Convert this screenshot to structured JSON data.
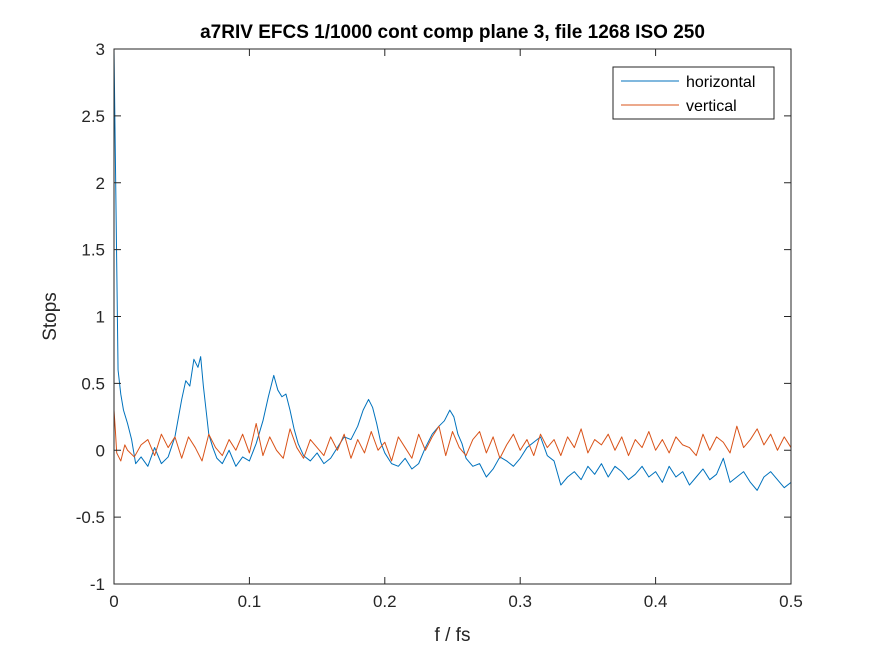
{
  "chart_data": {
    "type": "line",
    "title": "a7RIV EFCS 1/1000 cont comp plane 3, file 1268 ISO 250",
    "xlabel": "f / fs",
    "ylabel": "Stops",
    "xlim": [
      0,
      0.5
    ],
    "ylim": [
      -1,
      3
    ],
    "xticks": [
      0,
      0.1,
      0.2,
      0.3,
      0.4,
      0.5
    ],
    "xtick_labels": [
      "0",
      "0.1",
      "0.2",
      "0.3",
      "0.4",
      "0.5"
    ],
    "yticks": [
      -1,
      -0.5,
      0,
      0.5,
      1,
      1.5,
      2,
      2.5,
      3
    ],
    "ytick_labels": [
      "-1",
      "-0.5",
      "0",
      "0.5",
      "1",
      "1.5",
      "2",
      "2.5",
      "3"
    ],
    "grid": false,
    "legend_position": "top-right",
    "series": [
      {
        "name": "horizontal",
        "color": "#0072BD",
        "x": [
          0,
          0.001,
          0.002,
          0.003,
          0.005,
          0.007,
          0.01,
          0.013,
          0.016,
          0.02,
          0.025,
          0.03,
          0.035,
          0.04,
          0.045,
          0.05,
          0.053,
          0.056,
          0.059,
          0.062,
          0.064,
          0.066,
          0.068,
          0.07,
          0.073,
          0.076,
          0.08,
          0.085,
          0.09,
          0.095,
          0.1,
          0.105,
          0.11,
          0.114,
          0.118,
          0.121,
          0.124,
          0.127,
          0.13,
          0.133,
          0.136,
          0.14,
          0.145,
          0.15,
          0.155,
          0.16,
          0.165,
          0.17,
          0.175,
          0.18,
          0.184,
          0.188,
          0.191,
          0.194,
          0.197,
          0.2,
          0.205,
          0.21,
          0.215,
          0.22,
          0.225,
          0.23,
          0.235,
          0.24,
          0.244,
          0.248,
          0.251,
          0.254,
          0.257,
          0.26,
          0.265,
          0.27,
          0.275,
          0.28,
          0.285,
          0.29,
          0.295,
          0.3,
          0.305,
          0.31,
          0.315,
          0.32,
          0.325,
          0.33,
          0.335,
          0.34,
          0.345,
          0.35,
          0.355,
          0.36,
          0.365,
          0.37,
          0.375,
          0.38,
          0.385,
          0.39,
          0.395,
          0.4,
          0.405,
          0.41,
          0.415,
          0.42,
          0.425,
          0.43,
          0.435,
          0.44,
          0.445,
          0.45,
          0.455,
          0.46,
          0.465,
          0.47,
          0.475,
          0.48,
          0.485,
          0.49,
          0.495,
          0.5
        ],
        "y": [
          3.0,
          2.2,
          1.4,
          0.6,
          0.42,
          0.3,
          0.2,
          0.08,
          -0.1,
          -0.05,
          -0.12,
          0.02,
          -0.1,
          -0.05,
          0.1,
          0.38,
          0.52,
          0.48,
          0.68,
          0.62,
          0.7,
          0.48,
          0.3,
          0.12,
          0.02,
          -0.06,
          -0.1,
          0.0,
          -0.12,
          -0.05,
          -0.08,
          0.05,
          0.22,
          0.4,
          0.56,
          0.45,
          0.4,
          0.42,
          0.3,
          0.16,
          0.05,
          -0.04,
          -0.08,
          -0.02,
          -0.1,
          -0.06,
          0.02,
          0.1,
          0.08,
          0.18,
          0.3,
          0.38,
          0.32,
          0.2,
          0.06,
          -0.02,
          -0.1,
          -0.12,
          -0.06,
          -0.14,
          -0.1,
          0.02,
          0.12,
          0.18,
          0.22,
          0.3,
          0.25,
          0.12,
          0.05,
          -0.06,
          -0.12,
          -0.1,
          -0.2,
          -0.14,
          -0.05,
          -0.08,
          -0.12,
          -0.06,
          0.02,
          0.06,
          0.1,
          -0.04,
          -0.08,
          -0.26,
          -0.2,
          -0.16,
          -0.22,
          -0.12,
          -0.18,
          -0.1,
          -0.2,
          -0.12,
          -0.16,
          -0.22,
          -0.18,
          -0.12,
          -0.2,
          -0.16,
          -0.24,
          -0.12,
          -0.2,
          -0.16,
          -0.26,
          -0.2,
          -0.14,
          -0.22,
          -0.18,
          -0.06,
          -0.24,
          -0.2,
          -0.16,
          -0.24,
          -0.3,
          -0.2,
          -0.16,
          -0.22,
          -0.28,
          -0.24
        ]
      },
      {
        "name": "vertical",
        "color": "#D95319",
        "x": [
          0,
          0.001,
          0.002,
          0.005,
          0.008,
          0.01,
          0.015,
          0.02,
          0.025,
          0.03,
          0.035,
          0.04,
          0.045,
          0.05,
          0.055,
          0.06,
          0.065,
          0.07,
          0.075,
          0.08,
          0.085,
          0.09,
          0.095,
          0.1,
          0.105,
          0.11,
          0.115,
          0.12,
          0.125,
          0.13,
          0.135,
          0.14,
          0.145,
          0.15,
          0.155,
          0.16,
          0.165,
          0.17,
          0.175,
          0.18,
          0.185,
          0.19,
          0.195,
          0.2,
          0.205,
          0.21,
          0.215,
          0.22,
          0.225,
          0.23,
          0.235,
          0.24,
          0.245,
          0.25,
          0.255,
          0.26,
          0.265,
          0.27,
          0.275,
          0.28,
          0.285,
          0.29,
          0.295,
          0.3,
          0.305,
          0.31,
          0.315,
          0.32,
          0.325,
          0.33,
          0.335,
          0.34,
          0.345,
          0.35,
          0.355,
          0.36,
          0.365,
          0.37,
          0.375,
          0.38,
          0.385,
          0.39,
          0.395,
          0.4,
          0.405,
          0.41,
          0.415,
          0.42,
          0.425,
          0.43,
          0.435,
          0.44,
          0.445,
          0.45,
          0.455,
          0.46,
          0.465,
          0.47,
          0.475,
          0.48,
          0.485,
          0.49,
          0.495,
          0.5
        ],
        "y": [
          0.3,
          0.15,
          -0.02,
          -0.08,
          0.04,
          0.0,
          -0.05,
          0.04,
          0.08,
          -0.04,
          0.12,
          0.02,
          0.1,
          -0.06,
          0.1,
          0.02,
          -0.08,
          0.12,
          0.02,
          -0.04,
          0.08,
          0.0,
          0.12,
          -0.02,
          0.2,
          -0.04,
          0.1,
          0.0,
          -0.06,
          0.16,
          0.02,
          -0.06,
          0.08,
          0.02,
          -0.04,
          0.1,
          0.0,
          0.12,
          -0.06,
          0.08,
          -0.02,
          0.14,
          0.0,
          0.06,
          -0.08,
          0.1,
          0.02,
          -0.06,
          0.12,
          0.0,
          0.1,
          0.18,
          -0.04,
          0.14,
          0.02,
          -0.04,
          0.08,
          0.14,
          -0.02,
          0.1,
          -0.06,
          0.04,
          0.12,
          0.0,
          0.08,
          -0.04,
          0.12,
          0.02,
          0.08,
          -0.04,
          0.1,
          0.02,
          0.16,
          -0.02,
          0.08,
          0.04,
          0.12,
          0.0,
          0.1,
          -0.04,
          0.08,
          0.02,
          0.14,
          0.0,
          0.08,
          -0.02,
          0.1,
          0.04,
          0.02,
          -0.04,
          0.12,
          0.0,
          0.1,
          0.06,
          -0.02,
          0.18,
          0.02,
          0.08,
          0.16,
          0.04,
          0.12,
          0.0,
          0.1,
          0.02
        ]
      }
    ]
  }
}
